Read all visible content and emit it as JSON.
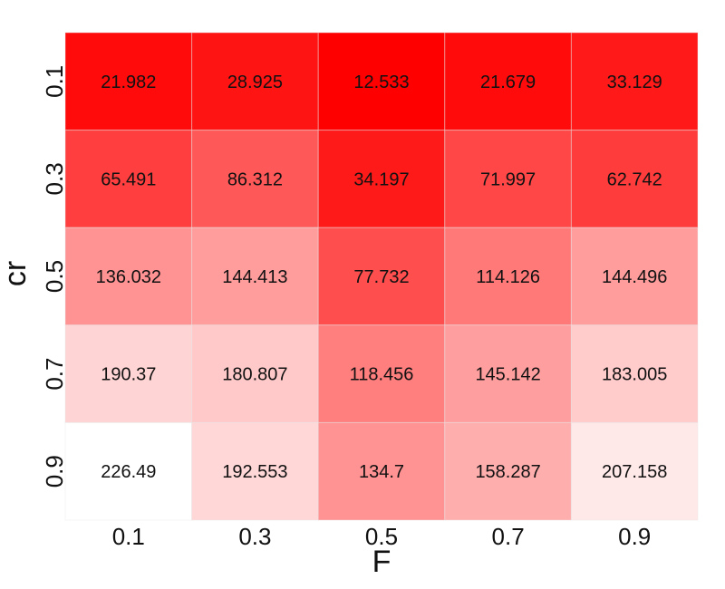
{
  "chart_data": {
    "type": "heatmap",
    "title": "",
    "xlabel": "F",
    "ylabel": "cr",
    "x_categories": [
      "0.1",
      "0.3",
      "0.5",
      "0.7",
      "0.9"
    ],
    "y_categories": [
      "0.1",
      "0.3",
      "0.5",
      "0.7",
      "0.9"
    ],
    "values": [
      [
        21.982,
        28.925,
        12.533,
        21.679,
        33.129
      ],
      [
        65.491,
        86.312,
        34.197,
        71.997,
        62.742
      ],
      [
        136.032,
        144.413,
        77.732,
        114.126,
        144.496
      ],
      [
        190.37,
        180.807,
        118.456,
        145.142,
        183.005
      ],
      [
        226.49,
        192.553,
        134.7,
        158.287,
        207.158
      ]
    ],
    "value_labels": [
      [
        "21.982",
        "28.925",
        "12.533",
        "21.679",
        "33.129"
      ],
      [
        "65.491",
        "86.312",
        "34.197",
        "71.997",
        "62.742"
      ],
      [
        "136.032",
        "144.413",
        "77.732",
        "114.126",
        "144.496"
      ],
      [
        "190.37",
        "180.807",
        "118.456",
        "145.142",
        "183.005"
      ],
      [
        "226.49",
        "192.553",
        "134.7",
        "158.287",
        "207.158"
      ]
    ],
    "colormap": {
      "low": "#ff0000",
      "high": "#ffffff"
    },
    "grid": false
  }
}
